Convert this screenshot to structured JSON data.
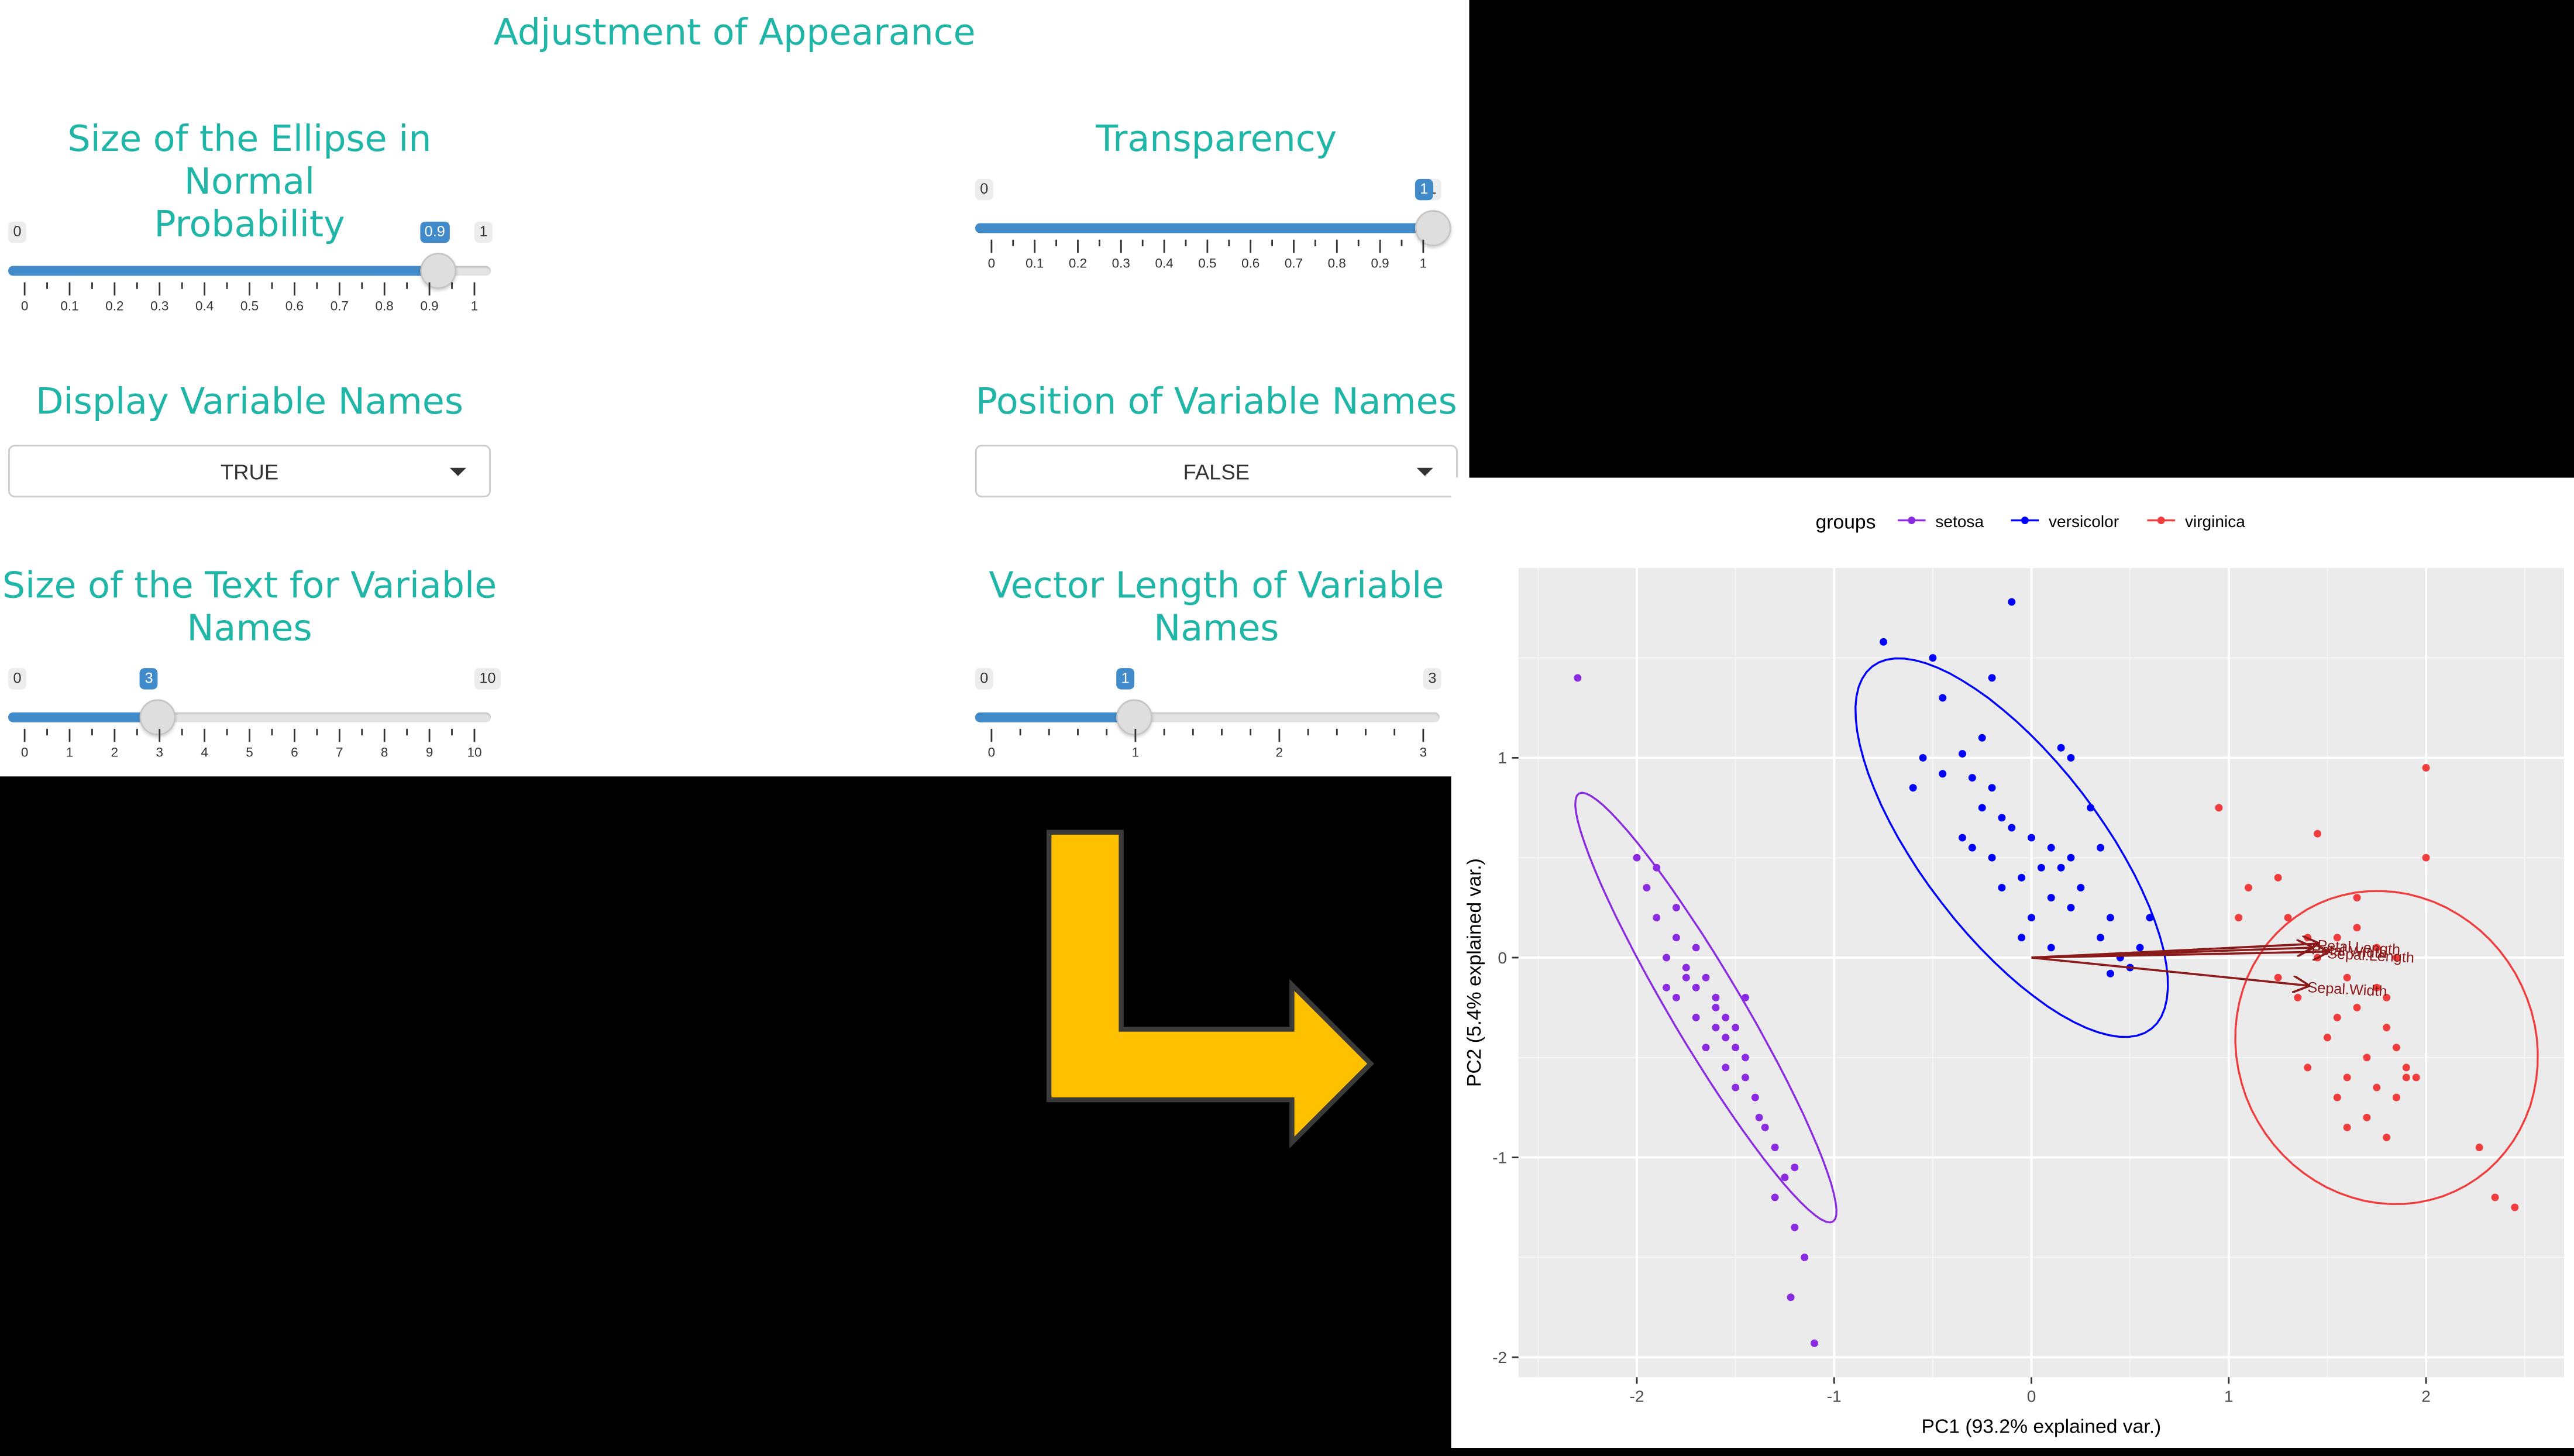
{
  "header": {
    "title": "Adjustment of Appearance"
  },
  "controls": {
    "ellipse_size": {
      "label_line1": "Size of the Ellipse in Normal",
      "label_line2": "Probability",
      "min": "0",
      "max": "1",
      "value": "0.9",
      "value_num": 0.9,
      "ticks": [
        "0",
        "0.1",
        "0.2",
        "0.3",
        "0.4",
        "0.5",
        "0.6",
        "0.7",
        "0.8",
        "0.9",
        "1"
      ]
    },
    "transparency": {
      "label": "Transparency",
      "min": "0",
      "max": "1",
      "value": "1",
      "value_num": 1,
      "ticks": [
        "0",
        "0.1",
        "0.2",
        "0.3",
        "0.4",
        "0.5",
        "0.6",
        "0.7",
        "0.8",
        "0.9",
        "1"
      ]
    },
    "display_names": {
      "label": "Display Variable Names",
      "value": "TRUE"
    },
    "names_position": {
      "label": "Position of Variable Names",
      "value": "FALSE"
    },
    "text_size": {
      "label_line1": "Size of the Text for Variable",
      "label_line2": "Names",
      "min": "0",
      "max": "10",
      "value": "3",
      "value_num": 3,
      "ticks": [
        "0",
        "1",
        "2",
        "3",
        "4",
        "5",
        "6",
        "7",
        "8",
        "9",
        "10"
      ]
    },
    "vector_length": {
      "label_line1": "Vector Length of Variable",
      "label_line2": "Names",
      "min": "0",
      "max": "3",
      "value": "1",
      "value_num": 1,
      "ticks": [
        "0",
        "1",
        "2",
        "3"
      ]
    }
  },
  "colors": {
    "teal": "#1fb6a8",
    "slider": "#428bca",
    "arrow": "#ffc000",
    "setosa": "#8a2be2",
    "versicolor": "#0000ff",
    "virginica": "#f03c3c"
  },
  "chart_data": {
    "type": "scatter",
    "title": "",
    "xlabel": "PC1 (93.2% explained var.)",
    "ylabel": "PC2 (5.4% explained var.)",
    "xlim": [
      -2.6,
      2.7
    ],
    "ylim": [
      -2.1,
      1.95
    ],
    "xticks": [
      "-2",
      "-1",
      "0",
      "1",
      "2"
    ],
    "yticks": [
      "-2",
      "-1",
      "0",
      "1"
    ],
    "grid": true,
    "legend": {
      "title": "groups",
      "position": "top",
      "entries": [
        "setosa",
        "versicolor",
        "virginica"
      ]
    },
    "series": [
      {
        "name": "setosa",
        "color": "#8a2be2",
        "ellipse": {
          "cx": -1.65,
          "cy": -0.25,
          "rx": 1.25,
          "ry": 0.18,
          "angle": -59
        },
        "points": [
          [
            -2.3,
            1.4
          ],
          [
            -2.0,
            0.5
          ],
          [
            -1.95,
            0.35
          ],
          [
            -1.9,
            0.2
          ],
          [
            -1.8,
            0.25
          ],
          [
            -1.85,
            0.0
          ],
          [
            -1.75,
            -0.05
          ],
          [
            -1.8,
            -0.2
          ],
          [
            -1.7,
            -0.15
          ],
          [
            -1.75,
            -0.1
          ],
          [
            -1.65,
            -0.1
          ],
          [
            -1.7,
            -0.3
          ],
          [
            -1.6,
            -0.25
          ],
          [
            -1.6,
            -0.35
          ],
          [
            -1.55,
            -0.3
          ],
          [
            -1.55,
            -0.4
          ],
          [
            -1.5,
            -0.45
          ],
          [
            -1.45,
            -0.5
          ],
          [
            -1.55,
            -0.55
          ],
          [
            -1.5,
            -0.35
          ],
          [
            -1.45,
            -0.6
          ],
          [
            -1.4,
            -0.7
          ],
          [
            -1.38,
            -0.8
          ],
          [
            -1.35,
            -0.85
          ],
          [
            -1.3,
            -0.95
          ],
          [
            -1.25,
            -1.1
          ],
          [
            -1.2,
            -1.05
          ],
          [
            -1.3,
            -1.2
          ],
          [
            -1.2,
            -1.35
          ],
          [
            -1.15,
            -1.5
          ],
          [
            -1.22,
            -1.7
          ],
          [
            -1.1,
            -1.93
          ],
          [
            -1.8,
            0.1
          ],
          [
            -1.9,
            0.45
          ],
          [
            -1.6,
            -0.2
          ],
          [
            -1.45,
            -0.2
          ],
          [
            -1.65,
            -0.45
          ],
          [
            -1.5,
            -0.65
          ],
          [
            -1.7,
            0.05
          ],
          [
            -1.85,
            -0.15
          ]
        ]
      },
      {
        "name": "versicolor",
        "color": "#0000ff",
        "ellipse": {
          "cx": -0.1,
          "cy": 0.55,
          "rx": 1.15,
          "ry": 0.45,
          "angle": -52
        },
        "points": [
          [
            -0.75,
            1.58
          ],
          [
            -0.5,
            1.5
          ],
          [
            -0.1,
            1.78
          ],
          [
            -0.2,
            1.4
          ],
          [
            -0.45,
            1.3
          ],
          [
            -0.25,
            1.1
          ],
          [
            -0.55,
            1.0
          ],
          [
            -0.35,
            1.02
          ],
          [
            -0.45,
            0.92
          ],
          [
            -0.3,
            0.9
          ],
          [
            -0.2,
            0.85
          ],
          [
            -0.6,
            0.85
          ],
          [
            -0.25,
            0.75
          ],
          [
            -0.15,
            0.7
          ],
          [
            0.15,
            1.05
          ],
          [
            0.2,
            1.0
          ],
          [
            -0.1,
            0.65
          ],
          [
            0.0,
            0.6
          ],
          [
            -0.3,
            0.55
          ],
          [
            -0.2,
            0.5
          ],
          [
            0.1,
            0.55
          ],
          [
            0.3,
            0.75
          ],
          [
            0.35,
            0.55
          ],
          [
            0.2,
            0.5
          ],
          [
            0.15,
            0.45
          ],
          [
            0.05,
            0.45
          ],
          [
            -0.15,
            0.35
          ],
          [
            0.1,
            0.3
          ],
          [
            0.2,
            0.25
          ],
          [
            0.0,
            0.2
          ],
          [
            0.4,
            0.2
          ],
          [
            0.35,
            0.1
          ],
          [
            0.45,
            0.0
          ],
          [
            0.5,
            -0.05
          ],
          [
            0.6,
            0.2
          ],
          [
            -0.05,
            0.1
          ],
          [
            0.1,
            0.05
          ],
          [
            -0.35,
            0.6
          ],
          [
            -0.05,
            0.4
          ],
          [
            0.25,
            0.35
          ],
          [
            0.4,
            -0.08
          ],
          [
            0.55,
            0.05
          ]
        ]
      },
      {
        "name": "virginica",
        "color": "#f03c3c",
        "ellipse": {
          "cx": 1.8,
          "cy": -0.45,
          "rx": 0.8,
          "ry": 0.75,
          "angle": -55
        },
        "points": [
          [
            2.0,
            0.95
          ],
          [
            0.95,
            0.75
          ],
          [
            1.45,
            0.62
          ],
          [
            2.0,
            0.5
          ],
          [
            1.1,
            0.35
          ],
          [
            1.25,
            0.4
          ],
          [
            1.3,
            0.2
          ],
          [
            1.4,
            0.1
          ],
          [
            1.55,
            0.1
          ],
          [
            1.65,
            0.15
          ],
          [
            1.75,
            0.05
          ],
          [
            1.85,
            0.0
          ],
          [
            1.45,
            0.0
          ],
          [
            1.6,
            -0.1
          ],
          [
            1.75,
            -0.15
          ],
          [
            1.65,
            -0.25
          ],
          [
            1.55,
            -0.3
          ],
          [
            1.5,
            -0.4
          ],
          [
            1.8,
            -0.35
          ],
          [
            1.85,
            -0.45
          ],
          [
            1.7,
            -0.5
          ],
          [
            1.9,
            -0.55
          ],
          [
            1.4,
            -0.55
          ],
          [
            1.6,
            -0.6
          ],
          [
            1.75,
            -0.65
          ],
          [
            1.55,
            -0.7
          ],
          [
            1.85,
            -0.7
          ],
          [
            1.9,
            -0.6
          ],
          [
            1.7,
            -0.8
          ],
          [
            1.6,
            -0.85
          ],
          [
            1.8,
            -0.9
          ],
          [
            1.95,
            -0.6
          ],
          [
            2.27,
            -0.95
          ],
          [
            2.35,
            -1.2
          ],
          [
            2.45,
            -1.25
          ],
          [
            1.05,
            0.2
          ],
          [
            1.25,
            -0.1
          ],
          [
            1.35,
            -0.2
          ],
          [
            1.65,
            0.3
          ],
          [
            1.8,
            -0.2
          ]
        ]
      }
    ],
    "loadings": [
      {
        "label": "Petal.Length",
        "x": 1.45,
        "y": 0.07
      },
      {
        "label": "Petal.Width",
        "x": 1.42,
        "y": 0.05
      },
      {
        "label": "Sepal.Length",
        "x": 1.5,
        "y": 0.03
      },
      {
        "label": "Sepal.Width",
        "x": 1.4,
        "y": -0.14
      }
    ]
  }
}
